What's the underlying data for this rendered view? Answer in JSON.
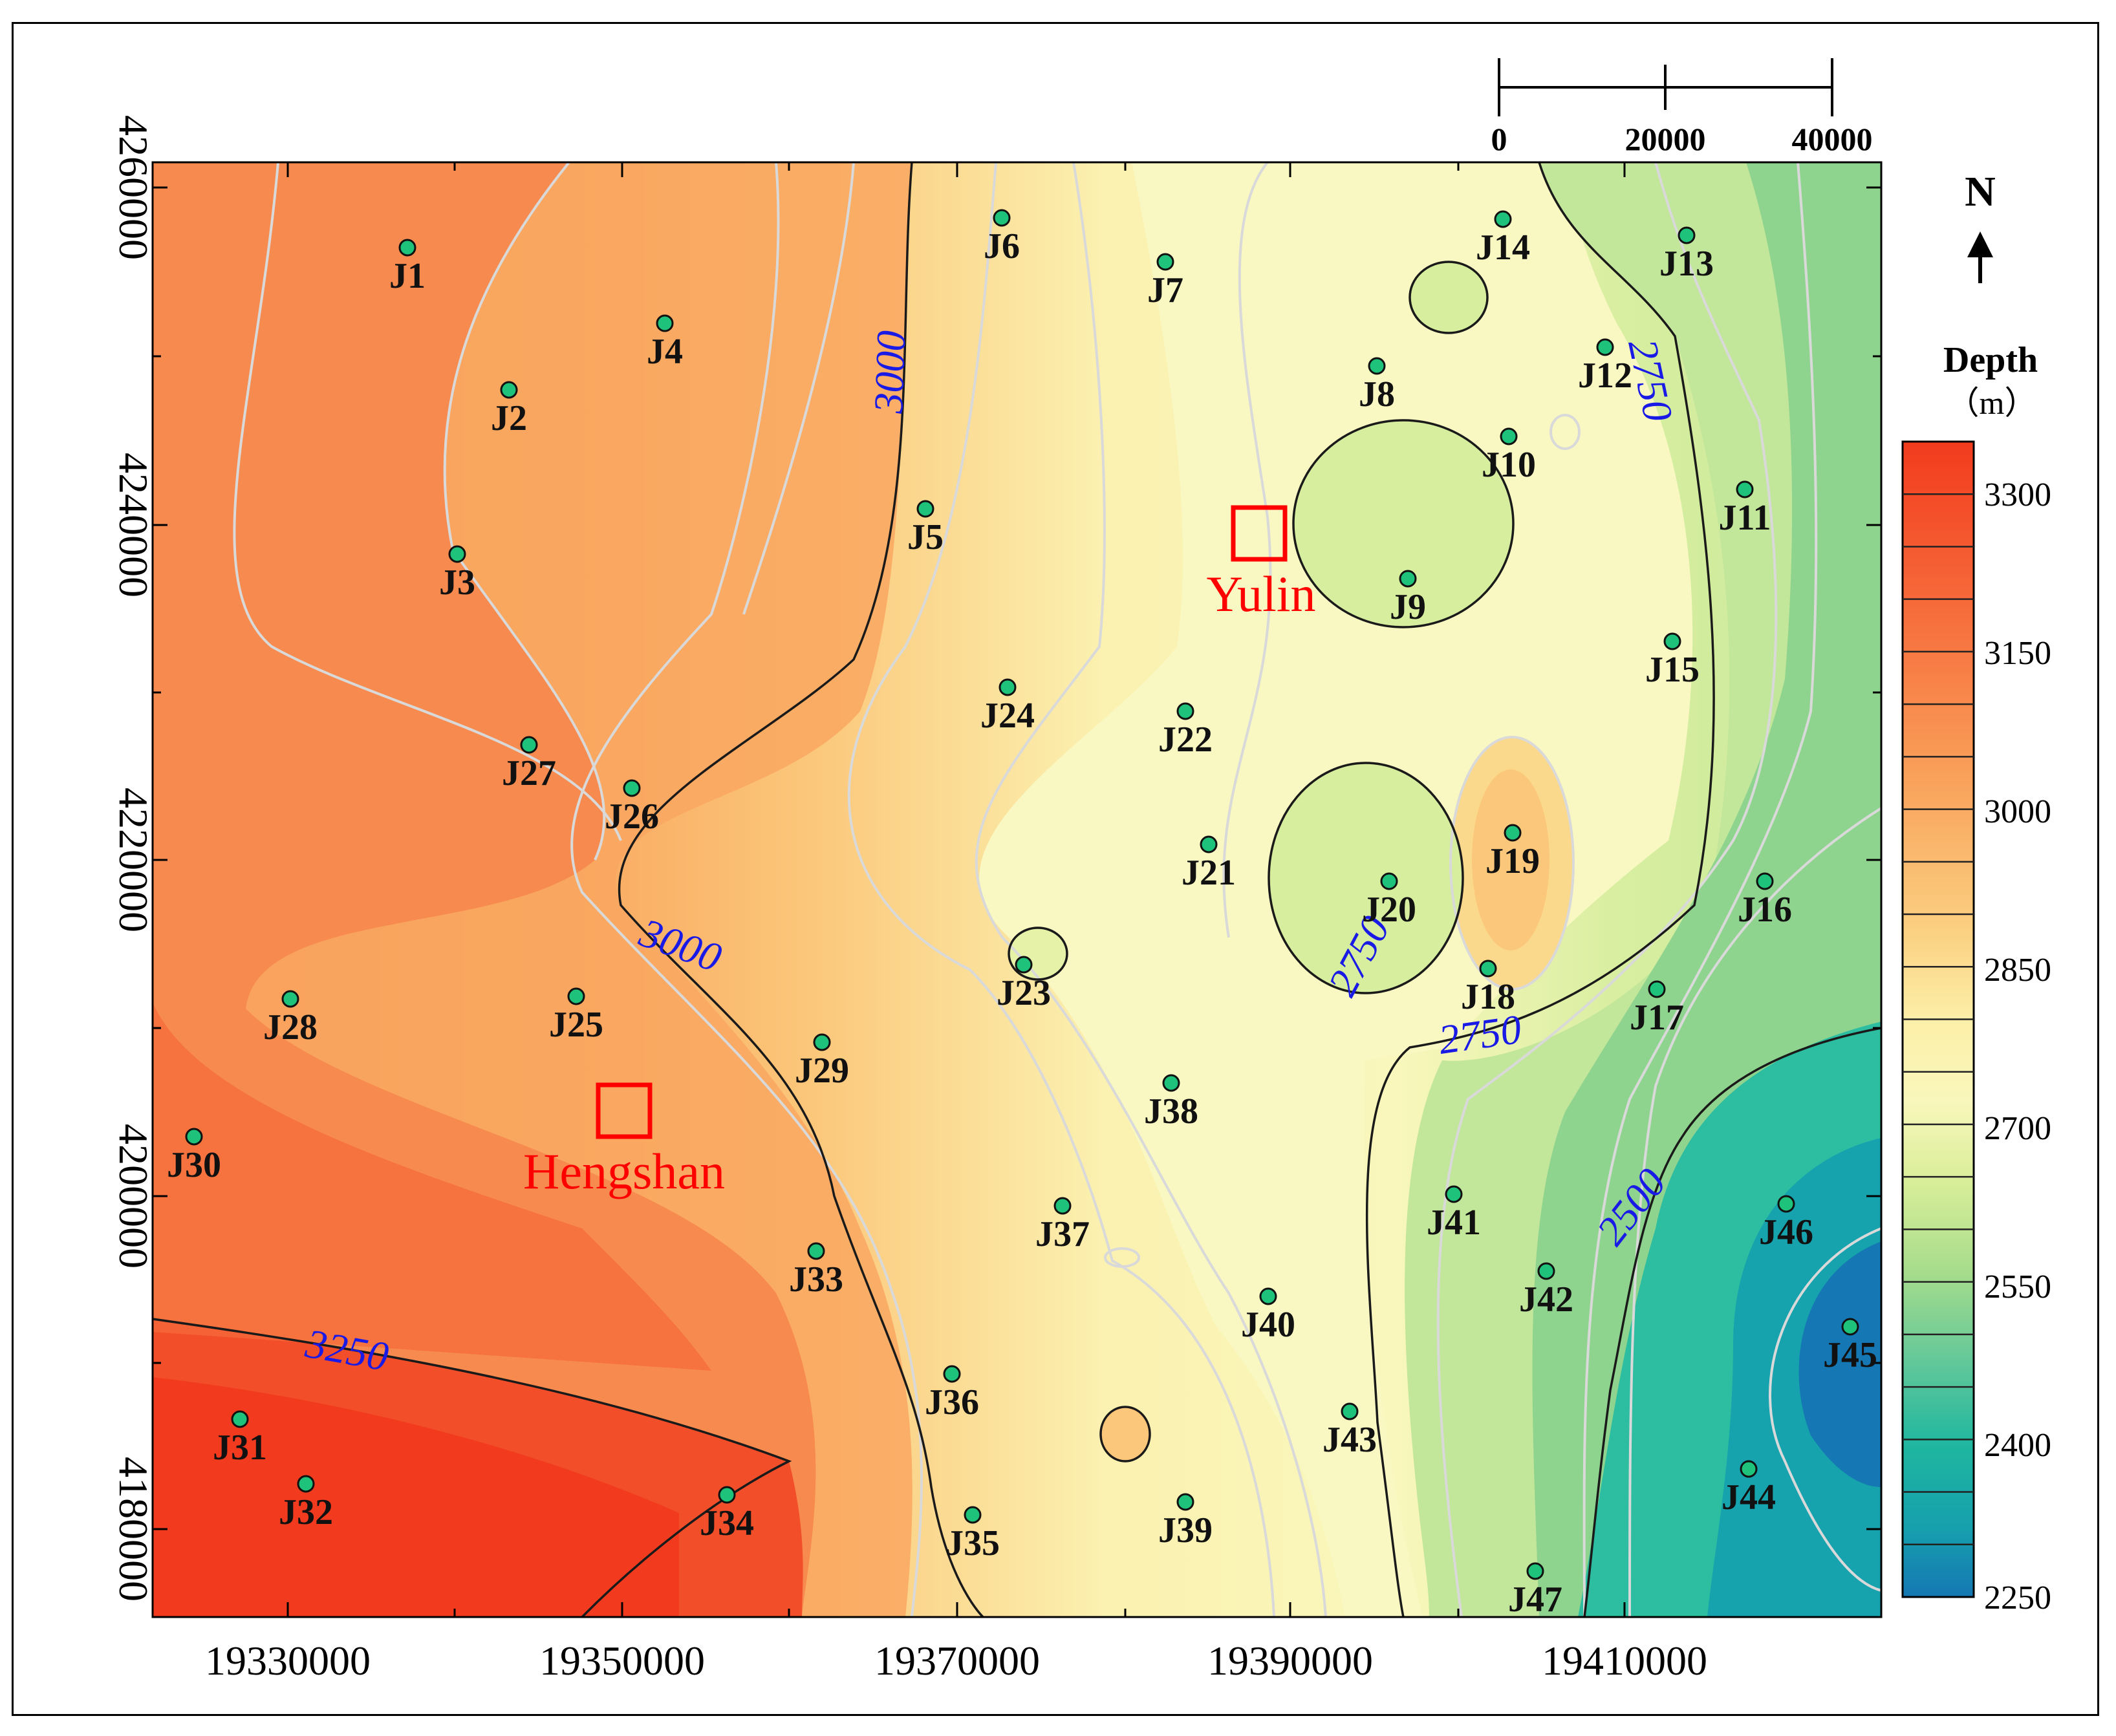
{
  "map": {
    "x_ticks": [
      "19330000",
      "19350000",
      "19370000",
      "19390000",
      "19410000"
    ],
    "y_ticks": [
      "4260000",
      "4240000",
      "4220000",
      "4200000",
      "4180000"
    ],
    "north_label": "N",
    "scale_bar": {
      "labels": [
        "0",
        "20000",
        "40000"
      ]
    },
    "legend": {
      "title": "Depth",
      "unit": "（m）",
      "ticks": [
        "3300",
        "3150",
        "3000",
        "2850",
        "2700",
        "2550",
        "2400",
        "2250"
      ]
    },
    "cities": [
      {
        "name": "Yulin"
      },
      {
        "name": "Hengshan"
      }
    ],
    "contour_labels": [
      "3000",
      "3000",
      "2750",
      "2750",
      "2750",
      "2500",
      "3250"
    ],
    "wells": [
      "J1",
      "J2",
      "J3",
      "J4",
      "J5",
      "J6",
      "J7",
      "J8",
      "J9",
      "J10",
      "J11",
      "J12",
      "J13",
      "J14",
      "J15",
      "J16",
      "J17",
      "J18",
      "J19",
      "J20",
      "J21",
      "J22",
      "J23",
      "J24",
      "J25",
      "J26",
      "J27",
      "J28",
      "J29",
      "J30",
      "J31",
      "J32",
      "J33",
      "J34",
      "J35",
      "J36",
      "J37",
      "J38",
      "J39",
      "J40",
      "J41",
      "J42",
      "J43",
      "J44",
      "J45",
      "J46",
      "J47"
    ],
    "colors": {
      "deep": "#f23b1e",
      "orange": "#f7904e",
      "pale_yellow": "#f8f6b8",
      "green": "#a6dc8c",
      "teal": "#1aa89c",
      "blue": "#1577b3",
      "well_dot": "#1ec27a",
      "city_box": "#ff0000"
    }
  }
}
